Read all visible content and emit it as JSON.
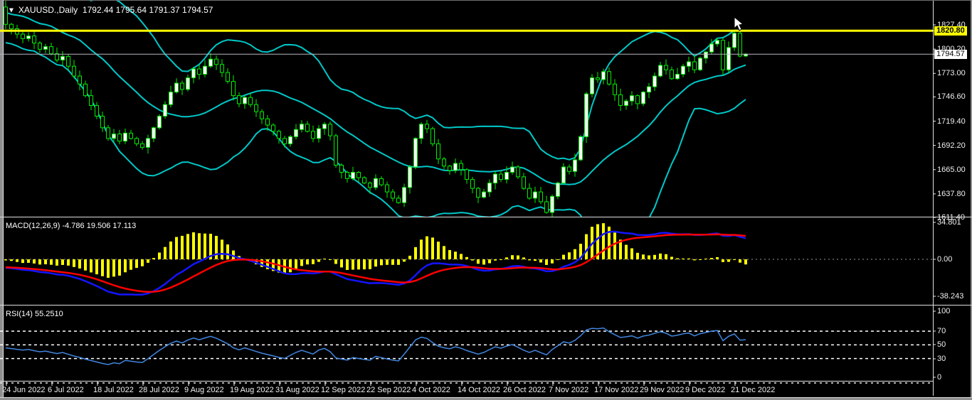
{
  "window": {
    "symbol_period": "XAUUSD.,Daily",
    "title_ohlc": "1792.44 1795.64 1791.37 1794.57",
    "dropdown_icon": "▼"
  },
  "price_axis": {
    "ticks": [
      "1827.40",
      "1800.20",
      "1773.00",
      "1746.60",
      "1719.40",
      "1692.20",
      "1665.00",
      "1637.80",
      "1611.40"
    ],
    "hline_label": "1820.80",
    "current_price_label": "1794.57"
  },
  "macd_panel": {
    "label": "MACD(12,26,9) -4.786 19.506 17.113",
    "params": "12,26,9",
    "values": [
      -4.786,
      19.506,
      17.113
    ],
    "axis_ticks": [
      "34.801",
      "0.00",
      "-38.243"
    ]
  },
  "rsi_panel": {
    "label": "RSI(14) 55.2510",
    "period": 14,
    "value": 55.251,
    "levels": [
      70,
      50,
      30
    ],
    "axis_ticks": [
      "100",
      "70",
      "50",
      "30",
      "0"
    ]
  },
  "time_axis": {
    "labels": [
      "24 Jun 2022",
      "6 Jul 2022",
      "18 Jul 2022",
      "28 Jul 2022",
      "9 Aug 2022",
      "19 Aug 2022",
      "31 Aug 2022",
      "12 Sep 2022",
      "22 Sep 2022",
      "4 Oct 2022",
      "14 Oct 2022",
      "26 Oct 2022",
      "7 Nov 2022",
      "17 Nov 2022",
      "29 Nov 2022",
      "9 Dec 2022",
      "21 Dec 2022"
    ]
  },
  "chart_data": [
    {
      "type": "candlestick",
      "symbol": "XAUUSD",
      "timeframe": "Daily",
      "title": "XAUUSD.,Daily 1792.44 1795.64 1791.37 1794.57",
      "ylim": [
        1611.4,
        1827.4
      ],
      "y_ticks": [
        1827.4,
        1800.2,
        1773.0,
        1746.6,
        1719.4,
        1692.2,
        1665.0,
        1637.8,
        1611.4
      ],
      "x_tick_labels": [
        "24 Jun 2022",
        "6 Jul 2022",
        "18 Jul 2022",
        "28 Jul 2022",
        "9 Aug 2022",
        "19 Aug 2022",
        "31 Aug 2022",
        "12 Sep 2022",
        "22 Sep 2022",
        "4 Oct 2022",
        "14 Oct 2022",
        "26 Oct 2022",
        "7 Nov 2022",
        "17 Nov 2022",
        "29 Nov 2022",
        "9 Dec 2022",
        "21 Dec 2022"
      ],
      "bars_per_x_tick": 8,
      "closes": [
        1828,
        1823,
        1817,
        1812,
        1815,
        1807,
        1800,
        1803,
        1795,
        1788,
        1792,
        1781,
        1770,
        1761,
        1748,
        1737,
        1725,
        1712,
        1700,
        1705,
        1697,
        1706,
        1700,
        1694,
        1690,
        1700,
        1712,
        1725,
        1738,
        1752,
        1762,
        1755,
        1768,
        1778,
        1772,
        1781,
        1789,
        1783,
        1774,
        1764,
        1748,
        1739,
        1746,
        1738,
        1730,
        1722,
        1715,
        1708,
        1700,
        1694,
        1702,
        1710,
        1716,
        1708,
        1700,
        1711,
        1716,
        1703,
        1670,
        1662,
        1655,
        1662,
        1656,
        1650,
        1645,
        1655,
        1648,
        1640,
        1633,
        1628,
        1645,
        1668,
        1700,
        1716,
        1711,
        1694,
        1677,
        1669,
        1664,
        1672,
        1665,
        1654,
        1644,
        1634,
        1640,
        1650,
        1660,
        1654,
        1662,
        1668,
        1657,
        1644,
        1633,
        1640,
        1629,
        1617,
        1635,
        1650,
        1668,
        1663,
        1676,
        1702,
        1750,
        1768,
        1766,
        1775,
        1761,
        1749,
        1737,
        1742,
        1748,
        1739,
        1752,
        1758,
        1770,
        1782,
        1777,
        1767,
        1772,
        1781,
        1786,
        1777,
        1790,
        1797,
        1806,
        1810,
        1777,
        1802,
        1818,
        1792.4,
        1794.57
      ],
      "last_candle": {
        "open": 1792.44,
        "high": 1795.64,
        "low": 1791.37,
        "close": 1794.57
      },
      "overlays": {
        "bollinger": {
          "period": 20,
          "deviation": 2
        },
        "horizontal_line_level": 1820.8,
        "current_price": 1794.57
      }
    },
    {
      "type": "bar+line",
      "name": "MACD",
      "params": [
        12,
        26,
        9
      ],
      "displayed_values": [
        -4.786,
        19.506,
        17.113
      ],
      "y_ticks": [
        34.801,
        0.0,
        -38.243
      ],
      "series": [
        {
          "name": "histogram",
          "style": "bar",
          "color": "#ffff00"
        },
        {
          "name": "macd",
          "style": "line",
          "color": "#1414ff"
        },
        {
          "name": "signal",
          "style": "line",
          "color": "#ff0000"
        }
      ]
    },
    {
      "type": "line",
      "name": "RSI",
      "period": 14,
      "displayed_value": 55.251,
      "y_ticks": [
        100,
        70,
        50,
        30,
        0
      ],
      "level_lines": [
        70,
        50,
        30
      ],
      "series": [
        {
          "name": "rsi",
          "style": "line",
          "color": "#4186e0"
        }
      ]
    }
  ],
  "colors": {
    "background": "#000000",
    "candle_border": "#00f000",
    "bull_fill": "#ffffff",
    "bear_fill": "#000000",
    "bollinger": "#00c8c8",
    "hline": "#ffff00",
    "current_price_line": "#b8b8c0",
    "macd_histogram": "#ffff00",
    "macd_line": "#1414ff",
    "macd_signal": "#ff0000",
    "rsi_line": "#4186e0",
    "axis_text": "#f0f0f0",
    "level_dash": "#ffffff"
  }
}
